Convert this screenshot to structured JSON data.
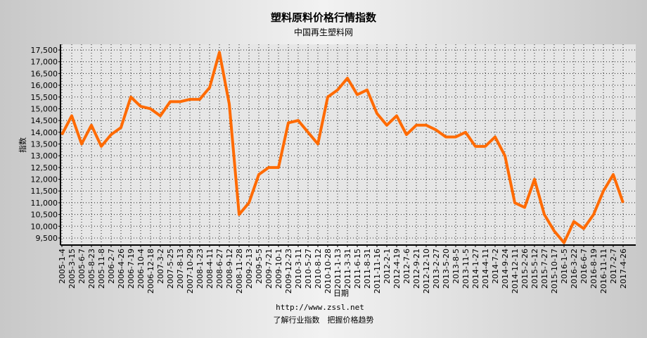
{
  "chart_data": {
    "type": "line",
    "title": "塑料原料价格行情指数",
    "subtitle": "中国再生塑料网",
    "y_label": "指数",
    "x_label": "日期",
    "footer_url": "http://www.zssl.net",
    "footer_slogan": "了解行业指数　把握价格趋势",
    "categories": [
      "2005-1-4",
      "2005-3-15",
      "2005-6-7",
      "2005-8-23",
      "2005-11-8",
      "2006-2-7",
      "2006-4-26",
      "2006-7-19",
      "2006-10-4",
      "2006-12-18",
      "2007-3-2",
      "2007-5-25",
      "2007-8-13",
      "2007-10-29",
      "2008-1-23",
      "2008-4-11",
      "2008-6-27",
      "2008-9-12",
      "2008-11-28",
      "2009-2-13",
      "2009-5-5",
      "2009-7-21",
      "2009-10-1",
      "2009-12-23",
      "2010-3-11",
      "2010-5-27",
      "2010-8-12",
      "2010-10-28",
      "2011-1-13",
      "2011-3-31",
      "2011-6-15",
      "2011-8-31",
      "2011-11-16",
      "2012-2-1",
      "2012-4-19",
      "2012-7-6",
      "2012-9-21",
      "2012-12-10",
      "2013-2-27",
      "2013-5-20",
      "2013-8-5",
      "2013-11-5",
      "2014-1-27",
      "2014-4-11",
      "2014-7-2",
      "2014-9-24",
      "2014-12-11",
      "2015-2-26",
      "2015-5-12",
      "2015-7-27",
      "2015-10-17",
      "2016-1-5",
      "2016-3-22",
      "2016-6-7",
      "2016-8-19",
      "2016-11-11",
      "2017-2-7",
      "2017-4-26"
    ],
    "series": [
      {
        "name": "指数",
        "color": "#ff6a00",
        "values": [
          13900,
          14700,
          13500,
          14300,
          13400,
          13900,
          14200,
          15500,
          15100,
          15000,
          14700,
          15300,
          15300,
          15400,
          15400,
          15900,
          17400,
          15200,
          10500,
          11000,
          12200,
          12500,
          12500,
          14400,
          14500,
          14000,
          13500,
          15500,
          15800,
          16300,
          15600,
          15800,
          14800,
          14300,
          14700,
          13900,
          14300,
          14300,
          14100,
          13800,
          13800,
          14000,
          13400,
          13400,
          13800,
          13000,
          11000,
          10800,
          12000,
          10500,
          9800,
          9300,
          10200,
          9900,
          10500,
          11500,
          12200,
          11000
        ]
      }
    ],
    "ylim": [
      9200,
      17740
    ],
    "yticks": [
      {
        "value": 9500,
        "label": "9,500"
      },
      {
        "value": 10000,
        "label": "10,000"
      },
      {
        "value": 10500,
        "label": "10,500"
      },
      {
        "value": 11000,
        "label": "11,000"
      },
      {
        "value": 11500,
        "label": "11,500"
      },
      {
        "value": 12000,
        "label": "12,000"
      },
      {
        "value": 12500,
        "label": "12,500"
      },
      {
        "value": 13000,
        "label": "13,000"
      },
      {
        "value": 13500,
        "label": "13,500"
      },
      {
        "value": 14000,
        "label": "14,000"
      },
      {
        "value": 14500,
        "label": "14,500"
      },
      {
        "value": 15000,
        "label": "15,000"
      },
      {
        "value": 15500,
        "label": "15,500"
      },
      {
        "value": 16000,
        "label": "16,000"
      },
      {
        "value": 16500,
        "label": "16,500"
      },
      {
        "value": 17000,
        "label": "17,000"
      },
      {
        "value": 17500,
        "label": "17,500"
      }
    ],
    "grid": true
  }
}
